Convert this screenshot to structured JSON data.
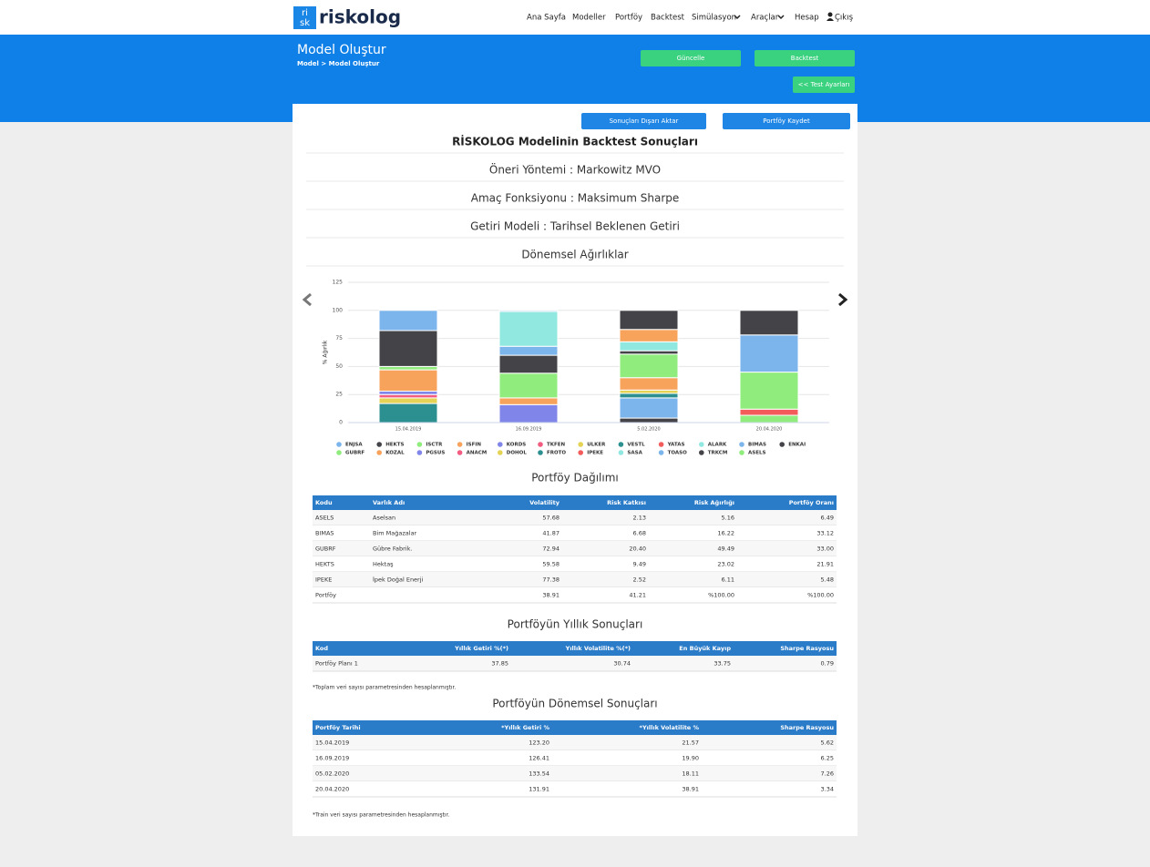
{
  "header": {
    "logo_icon": [
      "ri",
      "sk"
    ],
    "logo": "riskolog",
    "nav": [
      "Ana Sayfa",
      "Modeller",
      "Portföy",
      "Backtest",
      "Simülasyon",
      "Araçlar",
      "Hesap",
      "Çıkış"
    ]
  },
  "banner": {
    "title": "Model Oluştur",
    "breadcrumb": "Model > Model Oluştur",
    "buttons": [
      "Güncelle",
      "Backtest",
      "<< Test Ayarları"
    ]
  },
  "card": {
    "buttons": [
      "Sonuçları Dışarı Aktar",
      "Portföy Kaydet"
    ],
    "title": "RİSKOLOG Modelinin Backtest Sonuçları",
    "lines": [
      "Öneri Yöntemi : Markowitz MVO",
      "Amaç Fonksiyonu : Maksimum Sharpe",
      "Getiri Modeli : Tarihsel Beklenen Getiri"
    ],
    "chart_title": "Dönemsel Ağırlıklar"
  },
  "chart_data": {
    "type": "stacked_bar",
    "y_label": "% Ağırlık",
    "categories": [
      "15.04.2019",
      "16.09.2019",
      "5.02.2020",
      "20.04.2020"
    ],
    "ylim": [
      0,
      125
    ],
    "yticks": [
      0,
      25,
      50,
      75,
      100,
      125
    ],
    "grid": true,
    "legend": "bottom",
    "series": [
      {
        "name": "ENJSA",
        "color": "#7cb5ec",
        "values": [
          18,
          1,
          null,
          null
        ]
      },
      {
        "name": "HEKTS",
        "color": "#434348",
        "values": [
          32,
          null,
          17,
          21.91
        ]
      },
      {
        "name": "ISCTR",
        "color": "#90ed7d",
        "values": [
          3,
          null,
          null,
          null
        ]
      },
      {
        "name": "ISFIN",
        "color": "#f7a35c",
        "values": [
          19,
          null,
          11,
          null
        ]
      },
      {
        "name": "KORDS",
        "color": "#8085e9",
        "values": [
          3,
          null,
          null,
          null
        ]
      },
      {
        "name": "TKFEN",
        "color": "#f15c80",
        "values": [
          3,
          null,
          null,
          null
        ]
      },
      {
        "name": "ULKER",
        "color": "#e4d354",
        "values": [
          5,
          null,
          null,
          null
        ]
      },
      {
        "name": "VESTL",
        "color": "#2b908f",
        "values": [
          17,
          null,
          null,
          null
        ]
      },
      {
        "name": "YATAS",
        "color": "#f45b5b",
        "values": [
          null,
          null,
          null,
          null
        ]
      },
      {
        "name": "ALARK",
        "color": "#91e8e1",
        "values": [
          null,
          31,
          8,
          null
        ]
      },
      {
        "name": "BIMAS",
        "color": "#7cb5ec",
        "values": [
          null,
          8,
          null,
          33.12
        ]
      },
      {
        "name": "ENKAI",
        "color": "#434348",
        "values": [
          null,
          16,
          3,
          null
        ]
      },
      {
        "name": "GUBRF",
        "color": "#90ed7d",
        "values": [
          null,
          22,
          21,
          33
        ]
      },
      {
        "name": "KOZAL",
        "color": "#f7a35c",
        "values": [
          null,
          6,
          11,
          null
        ]
      },
      {
        "name": "PGSUS",
        "color": "#8085e9",
        "values": [
          null,
          16,
          null,
          null
        ]
      },
      {
        "name": "ANACM",
        "color": "#f15c80",
        "values": [
          null,
          null,
          null,
          null
        ]
      },
      {
        "name": "DOHOL",
        "color": "#e4d354",
        "values": [
          null,
          null,
          3,
          null
        ]
      },
      {
        "name": "FROTO",
        "color": "#2b908f",
        "values": [
          null,
          null,
          4,
          null
        ]
      },
      {
        "name": "IPEKE",
        "color": "#f45b5b",
        "values": [
          null,
          null,
          null,
          5.48
        ]
      },
      {
        "name": "SASA",
        "color": "#91e8e1",
        "values": [
          null,
          null,
          null,
          null
        ]
      },
      {
        "name": "TOASO",
        "color": "#7cb5ec",
        "values": [
          null,
          null,
          18,
          null
        ]
      },
      {
        "name": "TRKCM",
        "color": "#434348",
        "values": [
          null,
          null,
          4,
          null
        ]
      },
      {
        "name": "ASELS",
        "color": "#90ed7d",
        "values": [
          null,
          null,
          null,
          6.49
        ]
      }
    ]
  },
  "portfolio": {
    "title": "Portföy Dağılımı",
    "columns": [
      "Kodu",
      "Varlık Adı",
      "Volatility",
      "Risk Katkısı",
      "Risk Ağırlığı",
      "Portföy Oranı"
    ],
    "rows": [
      [
        "ASELS",
        "Aselsan",
        "57.68",
        "2.13",
        "5.16",
        "6.49"
      ],
      [
        "BIMAS",
        "Bim Mağazalar",
        "41.87",
        "6.68",
        "16.22",
        "33.12"
      ],
      [
        "GUBRF",
        "Gübre Fabrik.",
        "72.94",
        "20.40",
        "49.49",
        "33.00"
      ],
      [
        "HEKTS",
        "Hektaş",
        "59.58",
        "9.49",
        "23.02",
        "21.91"
      ],
      [
        "IPEKE",
        "İpek Doğal Enerji",
        "77.38",
        "2.52",
        "6.11",
        "5.48"
      ],
      [
        "Portföy",
        "",
        "38.91",
        "41.21",
        "%100.00",
        "%100.00"
      ]
    ]
  },
  "yearly": {
    "title": "Portföyün Yıllık Sonuçları",
    "columns": [
      "Kod",
      "Yıllık Getiri %(*)",
      "Yıllık Volatilite %(*)",
      "En Büyük Kayıp",
      "Sharpe Rasyosu"
    ],
    "rows": [
      [
        "Portföy Planı 1",
        "37.85",
        "30.74",
        "33.75",
        "0.79"
      ]
    ],
    "note": "*Toplam veri sayısı parametresinden hesaplanmıştır."
  },
  "periodic": {
    "title": "Portföyün Dönemsel Sonuçları",
    "columns": [
      "Portföy Tarihi",
      "*Yıllık Getiri %",
      "*Yıllık Volatilite %",
      "Sharpe Rasyosu"
    ],
    "rows": [
      [
        "15.04.2019",
        "123.20",
        "21.57",
        "5.62"
      ],
      [
        "16.09.2019",
        "126.41",
        "19.90",
        "6.25"
      ],
      [
        "05.02.2020",
        "133.54",
        "18.11",
        "7.26"
      ],
      [
        "20.04.2020",
        "131.91",
        "38.91",
        "3.34"
      ]
    ],
    "note": "*Train veri sayısı parametresinden hesaplanmıştır."
  }
}
